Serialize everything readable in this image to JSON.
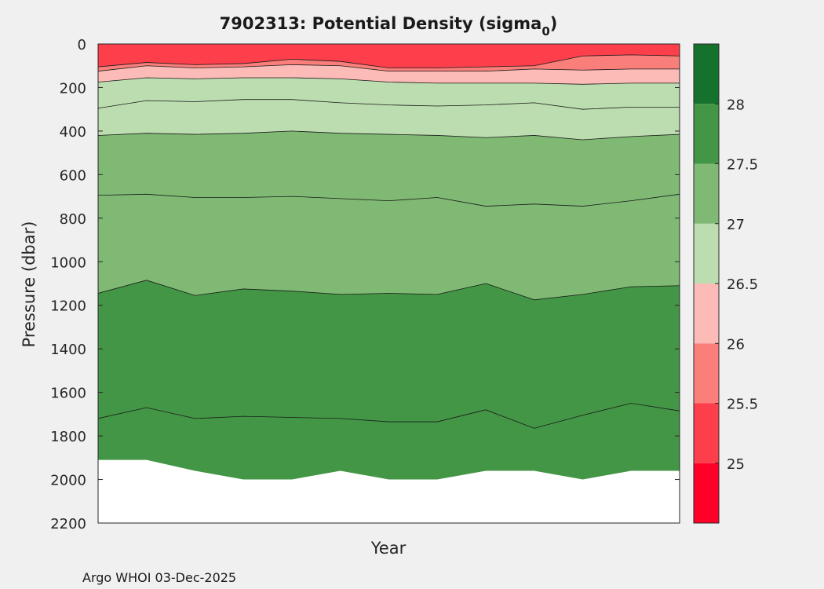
{
  "chart_data": {
    "type": "filled-contour",
    "title": "7902313: Potential Density (sigma",
    "title_subscript": "0",
    "title_suffix": ")",
    "xlabel": "Year",
    "ylabel": "Pressure (dbar)",
    "ylim": [
      0,
      2200
    ],
    "y_reversed": true,
    "yticks": [
      0,
      200,
      400,
      600,
      800,
      1000,
      1200,
      1400,
      1600,
      1800,
      2000,
      2200
    ],
    "profile_count": 13,
    "contour_levels": [
      25,
      25.5,
      26,
      26.5,
      27,
      27.5,
      28
    ],
    "colorbar": {
      "limits": [
        24.5,
        28.5
      ],
      "tick_labels": [
        "25",
        "25.5",
        "26",
        "26.5",
        "27",
        "27.5",
        "28"
      ],
      "bands": [
        {
          "from": 24.5,
          "to": 25.0,
          "color": "#ff0028"
        },
        {
          "from": 25.0,
          "to": 25.5,
          "color": "#fd3f4b"
        },
        {
          "from": 25.5,
          "to": 26.0,
          "color": "#fa7f7b"
        },
        {
          "from": 26.0,
          "to": 26.5,
          "color": "#fcbbb6"
        },
        {
          "from": 26.5,
          "to": 27.0,
          "color": "#bcddb0"
        },
        {
          "from": 27.0,
          "to": 27.5,
          "color": "#7fb974"
        },
        {
          "from": 27.5,
          "to": 28.0,
          "color": "#439645"
        },
        {
          "from": 28.0,
          "to": 28.5,
          "color": "#15722d"
        }
      ]
    },
    "isopycnals": [
      {
        "sigma": 25.5,
        "pressure": [
          105,
          85,
          95,
          90,
          70,
          80,
          110,
          110,
          105,
          100,
          55,
          50,
          55
        ],
        "boundary_color": "#fa7f7b"
      },
      {
        "sigma": 26.0,
        "pressure": [
          125,
          100,
          110,
          105,
          95,
          100,
          125,
          125,
          125,
          115,
          120,
          115,
          115
        ],
        "boundary_color": "#fcbbb6"
      },
      {
        "sigma": 26.5,
        "pressure": [
          175,
          155,
          160,
          155,
          155,
          160,
          175,
          180,
          180,
          180,
          185,
          180,
          180
        ],
        "boundary_color": "#bcddb0"
      },
      {
        "sigma": 26.8,
        "pressure": [
          295,
          260,
          265,
          255,
          255,
          270,
          280,
          285,
          280,
          270,
          300,
          290,
          290
        ],
        "boundary_color": "#bcddb0"
      },
      {
        "sigma": 27.0,
        "pressure": [
          420,
          410,
          415,
          410,
          400,
          410,
          415,
          420,
          430,
          420,
          440,
          425,
          415
        ],
        "boundary_color": "#7fb974"
      },
      {
        "sigma": 27.25,
        "pressure": [
          695,
          690,
          705,
          705,
          700,
          710,
          720,
          705,
          745,
          735,
          745,
          720,
          690
        ],
        "boundary_color": "#7fb974"
      },
      {
        "sigma": 27.5,
        "pressure": [
          1145,
          1085,
          1155,
          1125,
          1135,
          1150,
          1145,
          1150,
          1100,
          1175,
          1150,
          1115,
          1110
        ],
        "boundary_color": "#439645"
      },
      {
        "sigma": 27.7,
        "pressure": [
          1720,
          1670,
          1720,
          1710,
          1715,
          1720,
          1735,
          1735,
          1680,
          1765,
          1705,
          1650,
          1685
        ],
        "boundary_color": "#439645"
      }
    ],
    "max_pressure_sampled": [
      1910,
      1910,
      1960,
      2000,
      2000,
      1960,
      2000,
      2000,
      1960,
      1960,
      2000,
      1960,
      1960
    ],
    "no_data_color": "#ffffff"
  },
  "footer": "Argo WHOI 03-Dec-2025"
}
